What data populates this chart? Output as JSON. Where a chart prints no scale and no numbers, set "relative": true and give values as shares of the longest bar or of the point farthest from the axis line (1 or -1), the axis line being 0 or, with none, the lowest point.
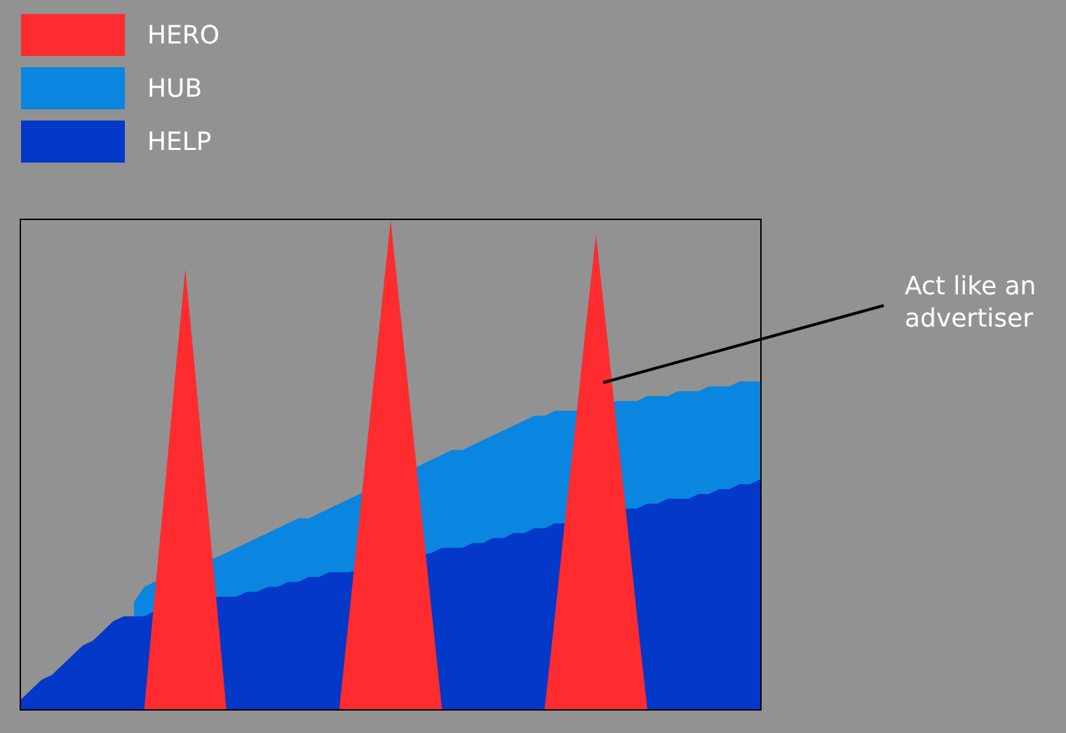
{
  "chart_data": {
    "type": "area",
    "relative": true,
    "legend": "top left",
    "categories": [
      null,
      null,
      null,
      null,
      null,
      null,
      null,
      null,
      null,
      null,
      null,
      null,
      null,
      null,
      null,
      null,
      null,
      null,
      null,
      null,
      null,
      null,
      null,
      null,
      null,
      null,
      null,
      null,
      null,
      null,
      null,
      null,
      null,
      null,
      null,
      null,
      null,
      null,
      null,
      null,
      null,
      null,
      null,
      null,
      null,
      null,
      null,
      null,
      null,
      null,
      null,
      null,
      null,
      null,
      null,
      null,
      null,
      null,
      null,
      null,
      null,
      null,
      null,
      null,
      null,
      null,
      null,
      null,
      null,
      null,
      null,
      null,
      null
    ],
    "series": [
      {
        "name": "HERO",
        "color": "#fe2b2f",
        "values": [
          0,
          0,
          0,
          0,
          0,
          0,
          0,
          0,
          0,
          0,
          0,
          0,
          0,
          0.23,
          0.45,
          0.68,
          0.9,
          0.68,
          0.45,
          0.23,
          0,
          0,
          0,
          0,
          0,
          0,
          0,
          0,
          0,
          0,
          0,
          0,
          0.2,
          0.4,
          0.6,
          0.8,
          1,
          0.8,
          0.6,
          0.4,
          0.2,
          0,
          0,
          0,
          0,
          0,
          0,
          0,
          0,
          0,
          0,
          0,
          0.19,
          0.39,
          0.58,
          0.78,
          0.97,
          0.78,
          0.58,
          0.39,
          0.19,
          0,
          0,
          0,
          0,
          0,
          0,
          0,
          0,
          0,
          0,
          0,
          0
        ]
      },
      {
        "name": "HUB",
        "color": "#0a86e0",
        "values": [
          null,
          null,
          null,
          null,
          null,
          null,
          null,
          null,
          null,
          null,
          null,
          0.22,
          0.25,
          0.26,
          null,
          null,
          null,
          null,
          null,
          0.31,
          0.32,
          0.33,
          0.34,
          0.35,
          0.36,
          0.37,
          0.38,
          0.39,
          0.39,
          0.4,
          0.41,
          0.42,
          0.43,
          0.44,
          null,
          null,
          null,
          null,
          null,
          0.5,
          0.51,
          0.52,
          0.53,
          0.53,
          0.54,
          0.55,
          0.56,
          0.57,
          0.58,
          0.59,
          0.6,
          0.6,
          0.61,
          0.61,
          0.61,
          null,
          null,
          null,
          0.63,
          0.63,
          0.63,
          0.64,
          0.64,
          0.64,
          0.65,
          0.65,
          0.65,
          0.66,
          0.66,
          0.66,
          0.67,
          0.67,
          0.67
        ]
      },
      {
        "name": "HELP",
        "color": "#0338c9",
        "values": [
          0.02,
          0.04,
          0.06,
          0.07,
          0.09,
          0.11,
          0.13,
          0.14,
          0.16,
          0.18,
          0.19,
          0.19,
          0.19,
          0.2,
          null,
          null,
          null,
          null,
          null,
          0.23,
          0.23,
          0.23,
          0.24,
          0.24,
          0.25,
          0.25,
          0.26,
          0.26,
          0.27,
          0.27,
          0.28,
          0.28,
          0.28,
          null,
          null,
          null,
          null,
          null,
          null,
          null,
          0.32,
          0.33,
          0.33,
          0.33,
          0.34,
          0.34,
          0.35,
          0.35,
          0.36,
          0.36,
          0.37,
          0.37,
          0.38,
          0.38,
          null,
          null,
          null,
          null,
          null,
          0.41,
          0.41,
          0.42,
          0.42,
          0.43,
          0.43,
          0.43,
          0.44,
          0.44,
          0.45,
          0.45,
          0.46,
          0.46,
          0.47
        ]
      }
    ],
    "annotations": [
      "Act like an advertiser"
    ]
  }
}
